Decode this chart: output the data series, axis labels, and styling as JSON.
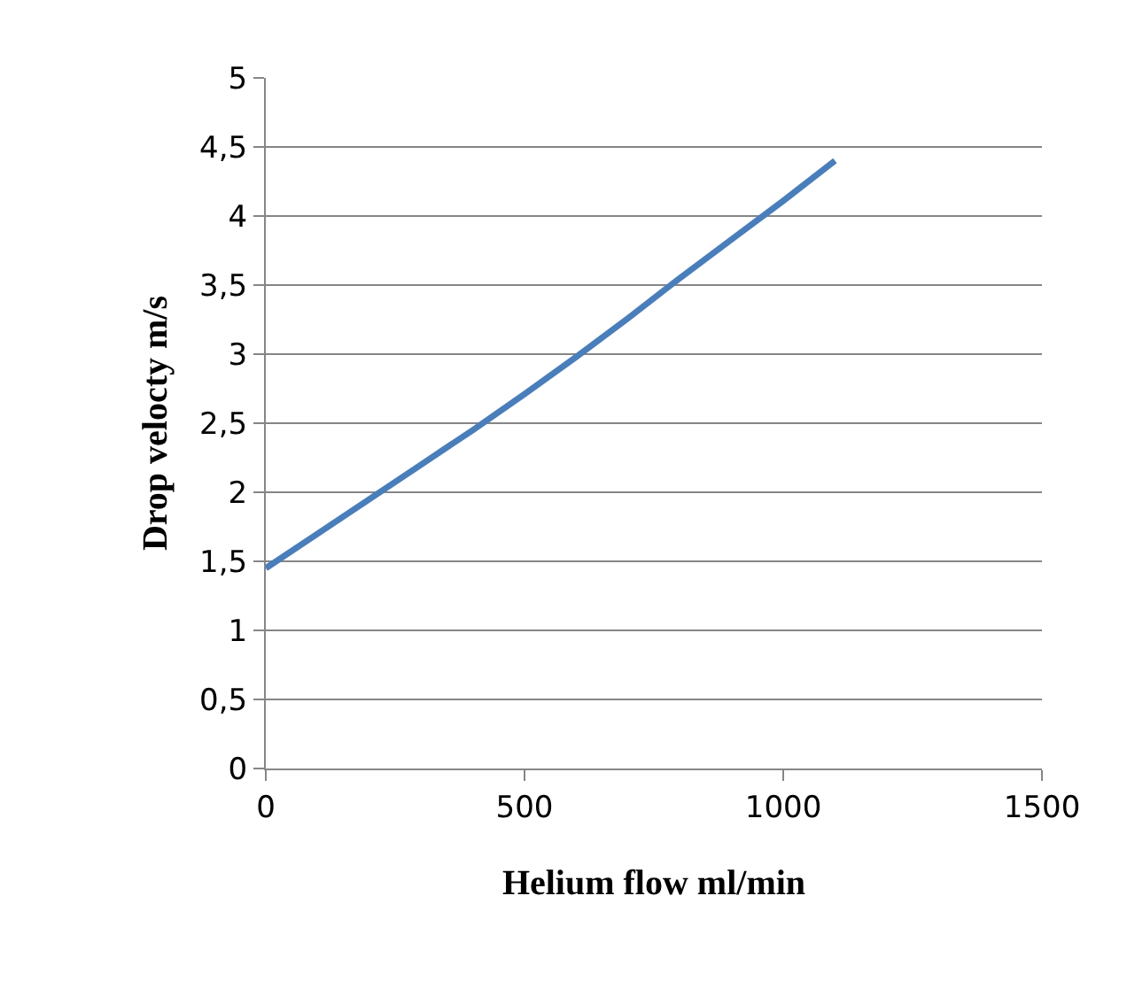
{
  "chart_data": {
    "type": "line",
    "xlabel": "Helium flow ml/min",
    "ylabel": "Drop velocty m/s",
    "x": [
      0,
      100,
      200,
      300,
      400,
      500,
      600,
      700,
      800,
      900,
      1000,
      1100
    ],
    "series": [
      {
        "color": "#4a7ebb",
        "values": [
          1.45,
          1.7,
          1.95,
          2.2,
          2.45,
          2.71,
          2.98,
          3.26,
          3.55,
          3.83,
          4.11,
          4.4
        ]
      }
    ],
    "xlim": [
      0,
      1500
    ],
    "xticks": [
      0,
      500,
      1000,
      1500
    ],
    "ylim": [
      0,
      5
    ],
    "yticks": [
      0,
      {
        "value": 0.5,
        "label": "0,5"
      },
      1,
      {
        "value": 1.5,
        "label": "1,5"
      },
      2,
      {
        "value": 2.5,
        "label": "2,5"
      },
      3,
      {
        "value": 3.5,
        "label": "3,5"
      },
      4,
      {
        "value": 4.5,
        "label": "4,5"
      },
      5
    ],
    "grid": "y",
    "legend": false,
    "marker": "none",
    "line_style": "solid"
  }
}
